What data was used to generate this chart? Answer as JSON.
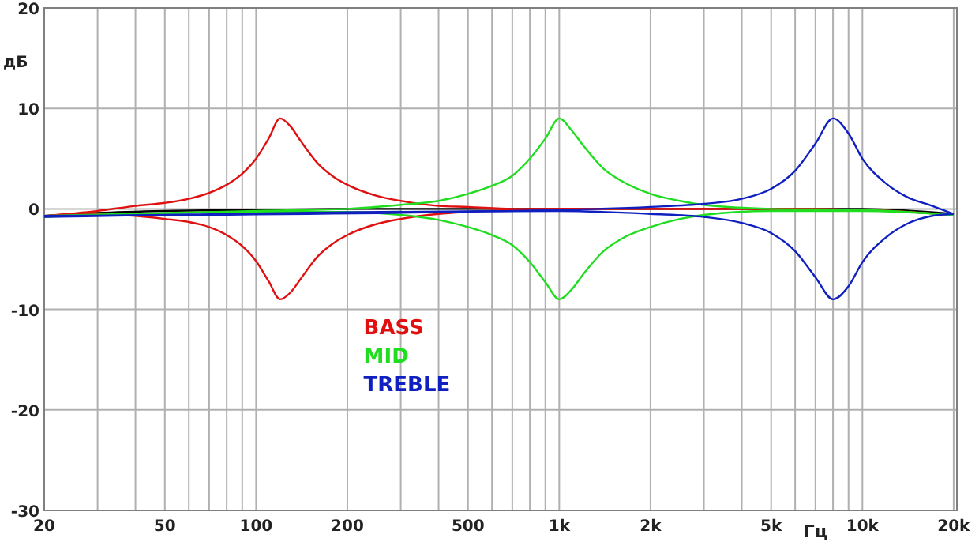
{
  "chart_data": {
    "type": "line",
    "xlabel": "Гц",
    "ylabel": "дБ",
    "log": "x",
    "grid": true,
    "legend": "bottom left",
    "marker": "none",
    "line_style": "solid",
    "xlim": [
      20,
      20500
    ],
    "ylim": [
      -30,
      20
    ],
    "xticks": [
      20,
      {
        "value": 30,
        "label": null
      },
      {
        "value": 40,
        "label": null
      },
      50,
      {
        "value": 60,
        "label": null
      },
      {
        "value": 70,
        "label": null
      },
      {
        "value": 80,
        "label": null
      },
      {
        "value": 90,
        "label": null
      },
      100,
      200,
      {
        "value": 300,
        "label": null
      },
      {
        "value": 400,
        "label": null
      },
      500,
      {
        "value": 600,
        "label": null
      },
      {
        "value": 700,
        "label": null
      },
      {
        "value": 800,
        "label": null
      },
      {
        "value": 900,
        "label": null
      },
      {
        "value": 1000,
        "label": "1k"
      },
      {
        "value": 2000,
        "label": "2k"
      },
      {
        "value": 3000,
        "label": null
      },
      {
        "value": 4000,
        "label": null
      },
      {
        "value": 5000,
        "label": "5k"
      },
      {
        "value": 6000,
        "label": null
      },
      {
        "value": 7000,
        "label": null
      },
      {
        "value": 8000,
        "label": null
      },
      {
        "value": 9000,
        "label": null
      },
      {
        "value": 10000,
        "label": "10k"
      },
      {
        "value": 20000,
        "label": "20k"
      }
    ],
    "yticks": [
      -30,
      -20,
      -10,
      0,
      10,
      20
    ],
    "series": [
      {
        "color": "#000000",
        "x": [
          20,
          30,
          50,
          100,
          200,
          1000,
          10000,
          20000
        ],
        "values": [
          -0.7,
          -0.4,
          -0.2,
          -0.1,
          0,
          0,
          0,
          -0.5
        ]
      },
      {
        "name": "BASS",
        "color": "#e01010",
        "x": [
          20,
          30,
          40,
          50,
          60,
          70,
          80,
          90,
          100,
          110,
          120,
          130,
          140,
          160,
          180,
          200,
          250,
          300,
          400,
          500,
          700,
          1000,
          5000,
          10000,
          20000
        ],
        "values": [
          -0.7,
          -0.2,
          0.3,
          0.6,
          1.0,
          1.6,
          2.4,
          3.5,
          5,
          7,
          9,
          8.2,
          6.8,
          4.5,
          3.2,
          2.4,
          1.3,
          0.8,
          0.3,
          0.2,
          0,
          0,
          0,
          -0.1,
          -0.6
        ]
      },
      {
        "color": "#e01010",
        "x": [
          20,
          30,
          40,
          50,
          60,
          70,
          80,
          90,
          100,
          110,
          120,
          130,
          140,
          160,
          180,
          200,
          250,
          300,
          400,
          500,
          700,
          1000,
          5000,
          10000,
          20000
        ],
        "values": [
          -0.8,
          -0.5,
          -0.7,
          -1,
          -1.3,
          -1.8,
          -2.6,
          -3.7,
          -5.2,
          -7.2,
          -9,
          -8.3,
          -7,
          -4.7,
          -3.4,
          -2.6,
          -1.5,
          -1,
          -0.5,
          -0.3,
          -0.1,
          0,
          0,
          -0.1,
          -0.6
        ]
      },
      {
        "name": "MID",
        "color": "#20dd20",
        "x": [
          20,
          100,
          200,
          300,
          400,
          500,
          600,
          700,
          800,
          900,
          1000,
          1100,
          1200,
          1400,
          1600,
          2000,
          2500,
          3000,
          5000,
          10000,
          20000
        ],
        "values": [
          -0.7,
          -0.2,
          0,
          0.4,
          0.8,
          1.5,
          2.3,
          3.3,
          5,
          7,
          9,
          7.8,
          6.3,
          4,
          2.8,
          1.5,
          0.8,
          0.4,
          0,
          -0.1,
          -0.6
        ]
      },
      {
        "color": "#20dd20",
        "x": [
          20,
          100,
          200,
          300,
          400,
          500,
          600,
          700,
          800,
          900,
          1000,
          1100,
          1200,
          1400,
          1600,
          2000,
          2500,
          3000,
          5000,
          10000,
          20000
        ],
        "values": [
          -0.8,
          -0.3,
          -0.3,
          -0.6,
          -1.1,
          -1.8,
          -2.6,
          -3.6,
          -5.3,
          -7.3,
          -9,
          -8,
          -6.5,
          -4.2,
          -3,
          -1.8,
          -1,
          -0.6,
          -0.2,
          -0.2,
          -0.6
        ]
      },
      {
        "name": "TREBLE",
        "color": "#1020c0",
        "x": [
          20,
          1000,
          2000,
          3000,
          4000,
          5000,
          6000,
          7000,
          8000,
          9000,
          10000,
          12000,
          14000,
          17000,
          20000
        ],
        "values": [
          -0.7,
          -0.1,
          0.2,
          0.5,
          1,
          2,
          3.8,
          6.5,
          9,
          7.5,
          5,
          2.5,
          1.2,
          0.3,
          -0.5
        ]
      },
      {
        "color": "#1020c0",
        "x": [
          20,
          1000,
          2000,
          3000,
          4000,
          5000,
          6000,
          7000,
          8000,
          9000,
          10000,
          12000,
          14000,
          17000,
          20000
        ],
        "values": [
          -0.8,
          -0.2,
          -0.5,
          -0.8,
          -1.4,
          -2.4,
          -4.2,
          -6.8,
          -9,
          -7.7,
          -5.3,
          -2.8,
          -1.5,
          -0.7,
          -0.5
        ]
      }
    ]
  }
}
